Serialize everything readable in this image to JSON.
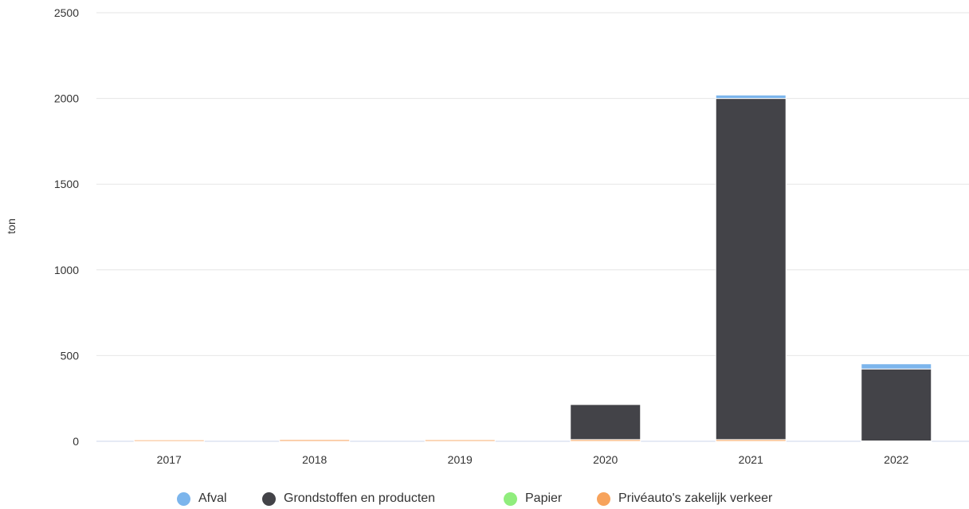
{
  "chart_data": {
    "type": "bar",
    "stacked": true,
    "title": "",
    "xlabel": "",
    "ylabel": "ton",
    "ylim": [
      0,
      2500
    ],
    "yticks": [
      0,
      500,
      1000,
      1500,
      2000,
      2500
    ],
    "grid": true,
    "legend_position": "bottom",
    "categories": [
      "2017",
      "2018",
      "2019",
      "2020",
      "2021",
      "2022"
    ],
    "series": [
      {
        "name": "Privéauto's zakelijk verkeer",
        "color": "#f7a35c",
        "values": [
          8,
          10,
          10,
          10,
          10,
          2
        ]
      },
      {
        "name": "Papier",
        "color": "#90ed7d",
        "values": [
          0,
          0,
          0,
          0,
          0,
          0
        ]
      },
      {
        "name": "Grondstoffen en producten",
        "color": "#434348",
        "values": [
          0,
          0,
          0,
          205,
          1990,
          420
        ]
      },
      {
        "name": "Afval",
        "color": "#7cb5ec",
        "values": [
          0,
          2,
          1,
          3,
          20,
          30
        ]
      }
    ],
    "legend_order": [
      "Afval",
      "Grondstoffen en producten",
      "Papier",
      "Privéauto's zakelijk verkeer"
    ]
  }
}
